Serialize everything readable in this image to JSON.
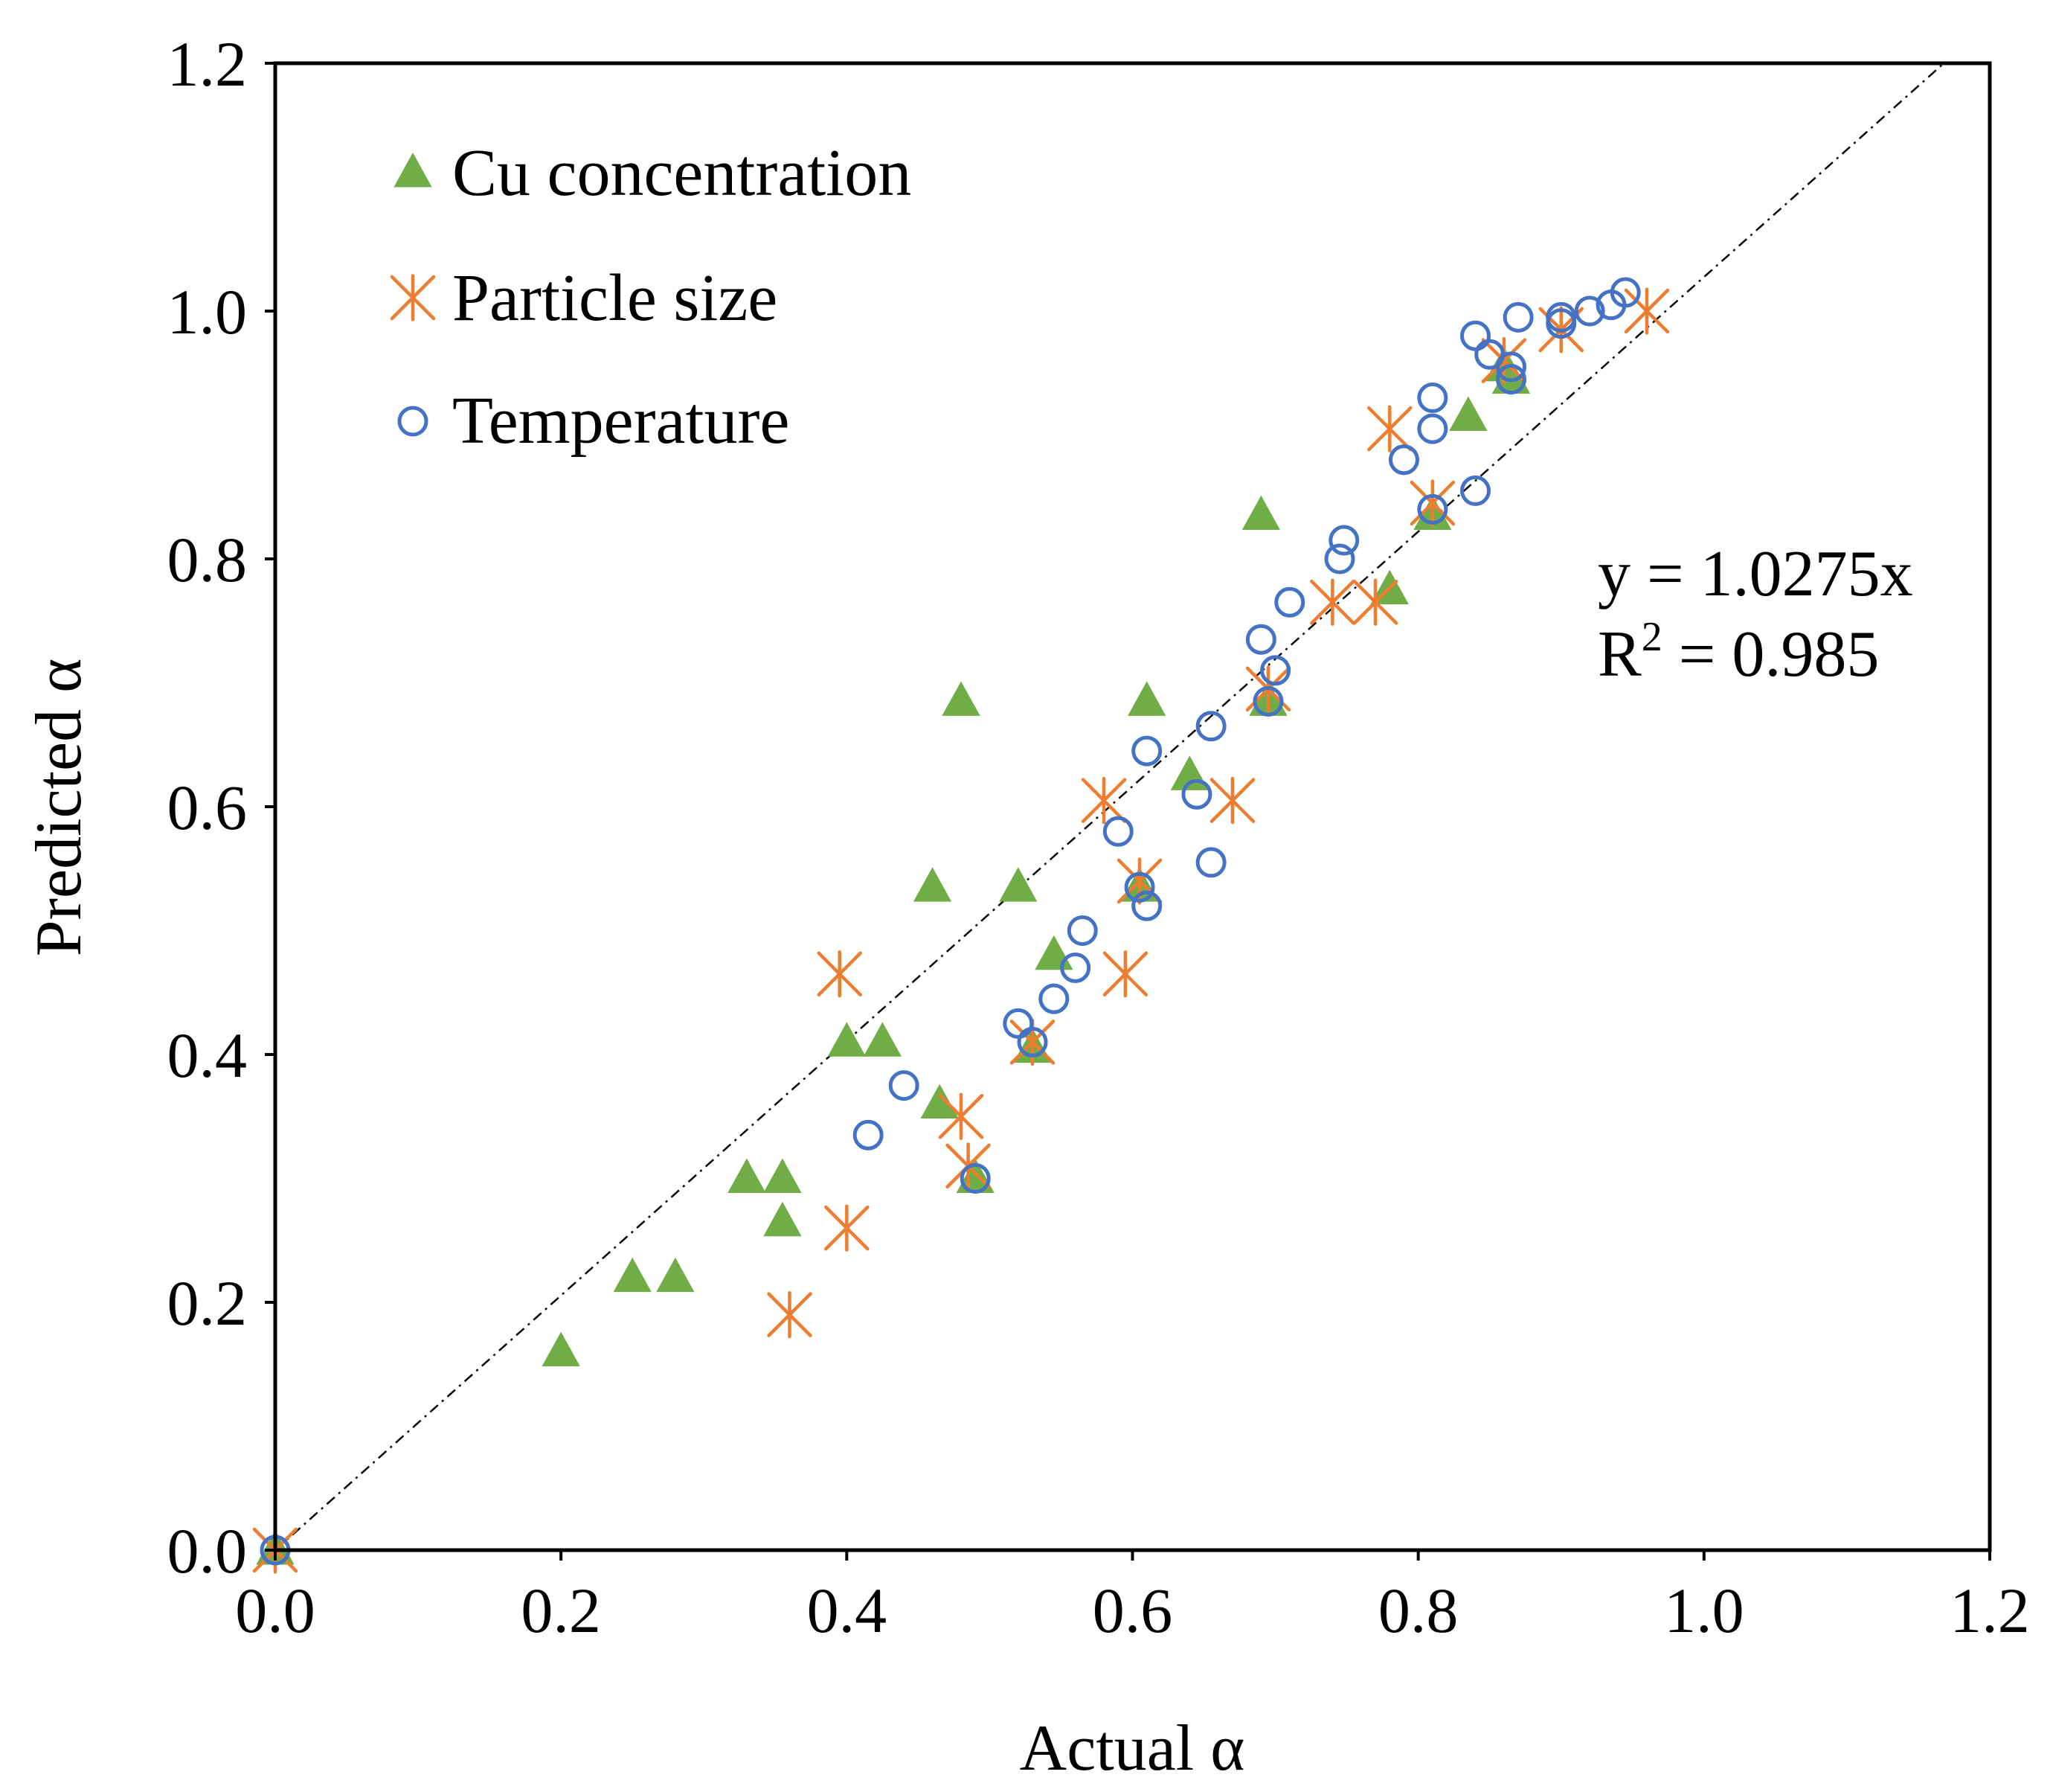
{
  "chart_data": {
    "type": "scatter",
    "title": "",
    "xlabel": "Actual α",
    "ylabel": "Predicted α",
    "xlim": [
      0,
      1.2
    ],
    "ylim": [
      0,
      1.2
    ],
    "xticks": [
      "0.0",
      "0.2",
      "0.4",
      "0.6",
      "0.8",
      "1.0",
      "1.2"
    ],
    "yticks": [
      "0.0",
      "0.2",
      "0.4",
      "0.6",
      "0.8",
      "1.0",
      "1.2"
    ],
    "grid": false,
    "legend_position": "top-left",
    "series": [
      {
        "name": "Cu concentration",
        "marker": "triangle",
        "color": "#70AD47",
        "points": [
          [
            0.0,
            0.0
          ],
          [
            0.2,
            0.16
          ],
          [
            0.25,
            0.22
          ],
          [
            0.28,
            0.22
          ],
          [
            0.33,
            0.3
          ],
          [
            0.355,
            0.3
          ],
          [
            0.355,
            0.265
          ],
          [
            0.4,
            0.41
          ],
          [
            0.425,
            0.41
          ],
          [
            0.465,
            0.36
          ],
          [
            0.46,
            0.535
          ],
          [
            0.48,
            0.685
          ],
          [
            0.49,
            0.3
          ],
          [
            0.52,
            0.535
          ],
          [
            0.53,
            0.405
          ],
          [
            0.545,
            0.48
          ],
          [
            0.605,
            0.535
          ],
          [
            0.61,
            0.685
          ],
          [
            0.64,
            0.625
          ],
          [
            0.69,
            0.835
          ],
          [
            0.695,
            0.685
          ],
          [
            0.78,
            0.775
          ],
          [
            0.81,
            0.835
          ],
          [
            0.835,
            0.915
          ],
          [
            0.86,
            0.955
          ],
          [
            0.865,
            0.945
          ]
        ]
      },
      {
        "name": "Particle size",
        "marker": "asterisk",
        "color": "#ED7D31",
        "points": [
          [
            0.0,
            0.0
          ],
          [
            0.36,
            0.19
          ],
          [
            0.395,
            0.465
          ],
          [
            0.4,
            0.26
          ],
          [
            0.48,
            0.35
          ],
          [
            0.485,
            0.31
          ],
          [
            0.53,
            0.41
          ],
          [
            0.58,
            0.605
          ],
          [
            0.595,
            0.465
          ],
          [
            0.605,
            0.54
          ],
          [
            0.67,
            0.605
          ],
          [
            0.695,
            0.695
          ],
          [
            0.74,
            0.765
          ],
          [
            0.77,
            0.765
          ],
          [
            0.78,
            0.905
          ],
          [
            0.81,
            0.845
          ],
          [
            0.86,
            0.96
          ],
          [
            0.9,
            0.985
          ],
          [
            0.96,
            1.0
          ]
        ]
      },
      {
        "name": "Temperature",
        "marker": "circle",
        "color": "#4472C4",
        "points": [
          [
            0.0,
            0.0
          ],
          [
            0.415,
            0.335
          ],
          [
            0.44,
            0.375
          ],
          [
            0.49,
            0.3
          ],
          [
            0.52,
            0.425
          ],
          [
            0.53,
            0.41
          ],
          [
            0.545,
            0.445
          ],
          [
            0.56,
            0.47
          ],
          [
            0.565,
            0.5
          ],
          [
            0.59,
            0.58
          ],
          [
            0.605,
            0.535
          ],
          [
            0.61,
            0.52
          ],
          [
            0.61,
            0.645
          ],
          [
            0.645,
            0.61
          ],
          [
            0.655,
            0.665
          ],
          [
            0.655,
            0.555
          ],
          [
            0.69,
            0.735
          ],
          [
            0.695,
            0.685
          ],
          [
            0.7,
            0.71
          ],
          [
            0.71,
            0.765
          ],
          [
            0.745,
            0.8
          ],
          [
            0.748,
            0.815
          ],
          [
            0.79,
            0.88
          ],
          [
            0.81,
            0.84
          ],
          [
            0.81,
            0.93
          ],
          [
            0.81,
            0.905
          ],
          [
            0.84,
            0.855
          ],
          [
            0.84,
            0.98
          ],
          [
            0.85,
            0.965
          ],
          [
            0.865,
            0.955
          ],
          [
            0.865,
            0.945
          ],
          [
            0.87,
            0.995
          ],
          [
            0.9,
            0.99
          ],
          [
            0.9,
            0.995
          ],
          [
            0.92,
            1.0
          ],
          [
            0.935,
            1.005
          ],
          [
            0.945,
            1.015
          ]
        ]
      }
    ],
    "trendline": {
      "slope": 1.0275,
      "intercept": 0,
      "style": "dash-dot",
      "color": "#000000"
    },
    "annotations": {
      "equation": "y = 1.0275x",
      "r2_prefix": "R",
      "r2_sup": "2",
      "r2_suffix": " = 0.985"
    }
  }
}
